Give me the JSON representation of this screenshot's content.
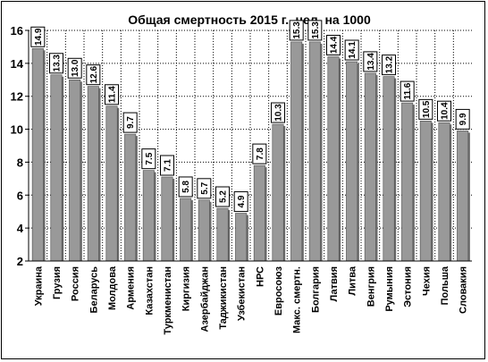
{
  "chart_data": {
    "type": "bar",
    "title": "Общая смертность 2015 г., чел. на 1000",
    "xlabel": "",
    "ylabel": "",
    "ylim": [
      2,
      16
    ],
    "yticks": [
      2,
      4,
      6,
      8,
      10,
      12,
      14,
      16
    ],
    "grid": true,
    "categories": [
      "Украина",
      "Грузия",
      "Россия",
      "Беларусь",
      "Молдова",
      "Армения",
      "Казахстан",
      "Туркменистан",
      "Киргизия",
      "Азербайджан",
      "Таджикистан",
      "Узбекистан",
      "НРС",
      "Евросоюз",
      "Макс. смертн.",
      "Болгария",
      "Латвия",
      "Литва",
      "Венгрия",
      "Румыния",
      "Эстония",
      "Чехия",
      "Польша",
      "Словакия"
    ],
    "values": [
      14.9,
      13.3,
      13.0,
      12.6,
      11.4,
      9.7,
      7.5,
      7.1,
      5.8,
      5.7,
      5.2,
      4.9,
      7.8,
      10.3,
      15.3,
      15.3,
      14.4,
      14.1,
      13.4,
      13.2,
      11.6,
      10.5,
      10.4,
      9.9
    ],
    "bar_color": "#999999",
    "label_box_color": "#ffffff"
  }
}
